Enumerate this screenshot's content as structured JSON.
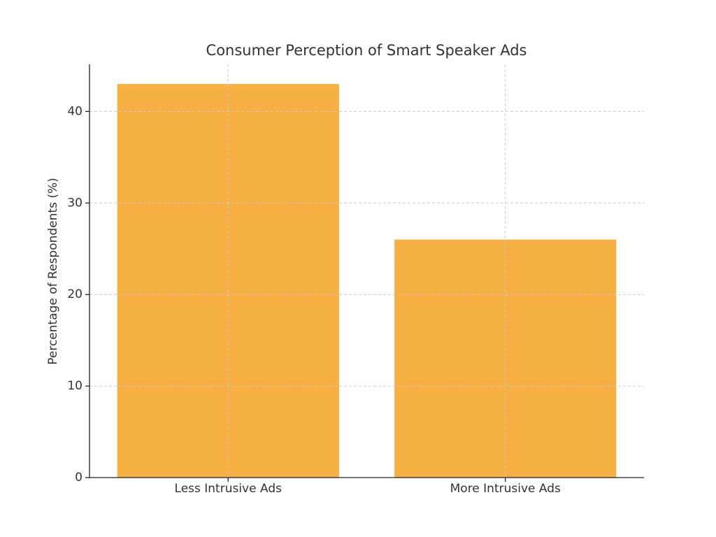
{
  "chart_data": {
    "type": "bar",
    "title": "Consumer Perception of Smart Speaker Ads",
    "y_label": "Percentage of Respondents (%)",
    "categories": [
      "Less Intrusive Ads",
      "More Intrusive Ads"
    ],
    "values": [
      43,
      26
    ],
    "color": "#f5b041",
    "ylim": [
      0,
      45.15
    ],
    "yticks": [
      0,
      10,
      20,
      30,
      40
    ],
    "grid": true
  }
}
